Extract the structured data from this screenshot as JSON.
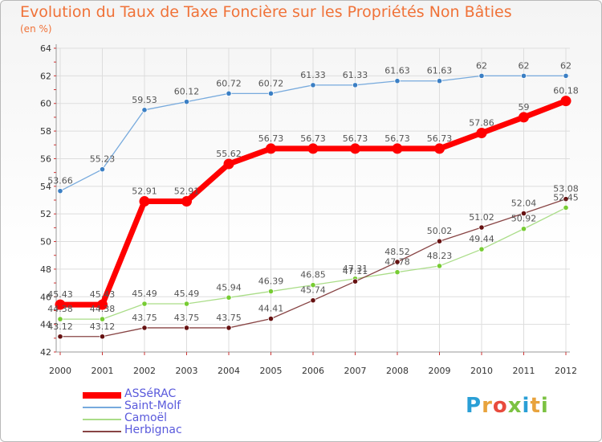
{
  "title": "Evolution du Taux de Taxe Foncière sur les Propriétés Non Bâties",
  "unit_label": "(en %)",
  "logo": {
    "text": "Proxiti",
    "letter_colors": [
      "#2a9fd6",
      "#e8a33d",
      "#e84b3d",
      "#7cc242",
      "#2a9fd6",
      "#e8a33d",
      "#7cc242"
    ]
  },
  "chart_data": {
    "type": "line",
    "title": "Evolution du Taux de Taxe Foncière sur les Propriétés Non Bâties",
    "ylabel": "(en %)",
    "xlabel": "",
    "x": [
      "2000",
      "2001",
      "2002",
      "2003",
      "2004",
      "2005",
      "2006",
      "2007",
      "2008",
      "2009",
      "2010",
      "2011",
      "2012"
    ],
    "ylim": [
      42,
      64
    ],
    "yticks": [
      42,
      44,
      46,
      48,
      50,
      52,
      54,
      56,
      58,
      60,
      62,
      64
    ],
    "grid": true,
    "legend_position": "bottom-left",
    "series": [
      {
        "name": "ASSéRAC",
        "color": "#ff0000",
        "point_color": "#ff0000",
        "width": 7,
        "values": [
          45.43,
          45.43,
          52.91,
          52.91,
          55.62,
          56.73,
          56.73,
          56.73,
          56.73,
          56.73,
          57.86,
          59,
          60.18
        ],
        "labels": [
          "45.43",
          "45.43",
          "52.91",
          "52.91",
          "55.62",
          "56.73",
          "56.73",
          "56.73",
          "56.73",
          "56.73",
          "57.86",
          "59",
          "60.18"
        ]
      },
      {
        "name": "Saint-Molf",
        "color": "#77aadd",
        "point_color": "#3b7fc4",
        "width": 1.3,
        "values": [
          53.66,
          55.23,
          59.53,
          60.12,
          60.72,
          60.72,
          61.33,
          61.33,
          61.63,
          61.63,
          62,
          62,
          62
        ],
        "labels": [
          "53.66",
          "55.23",
          "59.53",
          "60.12",
          "60.72",
          "60.72",
          "61.33",
          "61.33",
          "61.63",
          "61.63",
          "62",
          "62",
          "62"
        ]
      },
      {
        "name": "Camoël",
        "color": "#aadd88",
        "point_color": "#77cc33",
        "width": 1.3,
        "values": [
          44.38,
          44.38,
          45.49,
          45.49,
          45.94,
          46.39,
          46.85,
          47.31,
          47.78,
          48.23,
          49.44,
          50.92,
          52.45
        ],
        "labels": [
          "44.38",
          "44.38",
          "45.49",
          "45.49",
          "45.94",
          "46.39",
          "46.85",
          "47.31",
          "47.78",
          "48.23",
          "49.44",
          "50.92",
          "52.45"
        ]
      },
      {
        "name": "Herbignac",
        "color": "#884444",
        "point_color": "#661111",
        "width": 1.3,
        "values": [
          43.12,
          43.12,
          43.75,
          43.75,
          43.75,
          44.41,
          45.74,
          47.11,
          48.52,
          50.02,
          51.02,
          52.04,
          53.08
        ],
        "labels": [
          "43.12",
          "43.12",
          "43.75",
          "43.75",
          "43.75",
          "44.41",
          "45.74",
          "47.11",
          "48.52",
          "50.02",
          "51.02",
          "52.04",
          "53.08"
        ]
      }
    ]
  }
}
